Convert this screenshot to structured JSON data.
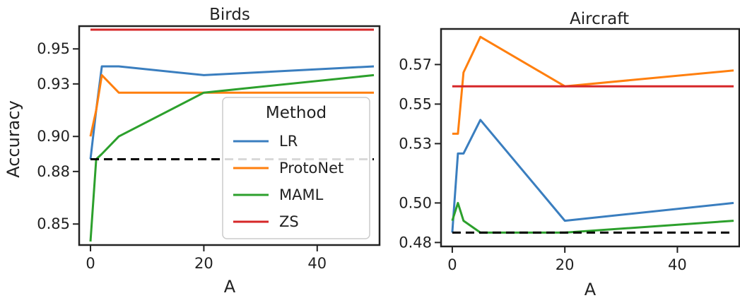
{
  "colors": {
    "LR": "#3a7ebf",
    "ProtoNet": "#ff7f0e",
    "MAML": "#2ca02c",
    "ZS": "#d62728",
    "baseline": "#000000"
  },
  "legend": {
    "title": "Method",
    "entries": [
      "LR",
      "ProtoNet",
      "MAML",
      "ZS"
    ]
  },
  "chart_data": [
    {
      "type": "line",
      "title": "Birds",
      "xlabel": "A",
      "ylabel": "Accuracy",
      "xlim": [
        -2,
        51
      ],
      "ylim": [
        0.838,
        0.963
      ],
      "xticks": [
        0,
        20,
        40
      ],
      "yticks": [
        0.85,
        0.88,
        0.9,
        0.93,
        0.95
      ],
      "ytick_labels": [
        "0.85",
        "0.88",
        "0.90",
        "0.93",
        "0.95"
      ],
      "x": [
        0,
        1,
        2,
        5,
        20,
        50
      ],
      "series": [
        {
          "name": "LR",
          "values": [
            0.887,
            0.915,
            0.94,
            0.94,
            0.935,
            0.94
          ]
        },
        {
          "name": "ProtoNet",
          "values": [
            0.9,
            0.915,
            0.935,
            0.925,
            0.925,
            0.925
          ]
        },
        {
          "name": "MAML",
          "values": [
            0.84,
            0.887,
            0.89,
            0.9,
            0.925,
            0.935
          ]
        },
        {
          "name": "ZS",
          "values": [
            0.961,
            0.961,
            0.961,
            0.961,
            0.961,
            0.961
          ]
        }
      ],
      "baseline": {
        "value": 0.887,
        "style": "dashed"
      },
      "grid": false,
      "legend_position": "lower-right"
    },
    {
      "type": "line",
      "title": "Aircraft",
      "xlabel": "A",
      "ylabel": "",
      "xlim": [
        -2,
        51
      ],
      "ylim": [
        0.478,
        0.588
      ],
      "xticks": [
        0,
        20,
        40
      ],
      "yticks": [
        0.48,
        0.5,
        0.53,
        0.55,
        0.57
      ],
      "ytick_labels": [
        "0.48",
        "0.50",
        "0.53",
        "0.55",
        "0.57"
      ],
      "x": [
        0,
        1,
        2,
        5,
        20,
        50
      ],
      "series": [
        {
          "name": "LR",
          "values": [
            0.485,
            0.525,
            0.525,
            0.542,
            0.491,
            0.5
          ]
        },
        {
          "name": "ProtoNet",
          "values": [
            0.535,
            0.535,
            0.566,
            0.584,
            0.559,
            0.567
          ]
        },
        {
          "name": "MAML",
          "values": [
            0.491,
            0.5,
            0.491,
            0.485,
            0.485,
            0.491
          ]
        },
        {
          "name": "ZS",
          "values": [
            0.559,
            0.559,
            0.559,
            0.559,
            0.559,
            0.559
          ]
        }
      ],
      "baseline": {
        "value": 0.485,
        "style": "dashed"
      },
      "grid": false
    }
  ]
}
